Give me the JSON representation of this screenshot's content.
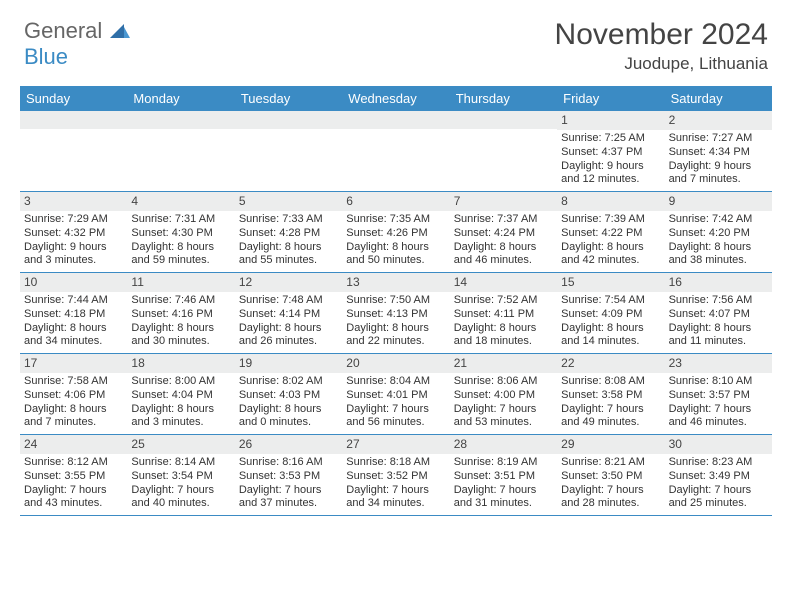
{
  "brand": {
    "part1": "General",
    "part2": "Blue"
  },
  "title": {
    "month": "November 2024",
    "location": "Juodupe, Lithuania"
  },
  "colors": {
    "header_bg": "#3b8bc4",
    "header_text": "#ffffff",
    "daynum_bg": "#eceded",
    "border": "#3b8bc4",
    "text": "#333333",
    "background": "#ffffff"
  },
  "weekdays": [
    "Sunday",
    "Monday",
    "Tuesday",
    "Wednesday",
    "Thursday",
    "Friday",
    "Saturday"
  ],
  "weeks": [
    [
      {
        "n": "",
        "sr": "",
        "ss": "",
        "d1": "",
        "d2": ""
      },
      {
        "n": "",
        "sr": "",
        "ss": "",
        "d1": "",
        "d2": ""
      },
      {
        "n": "",
        "sr": "",
        "ss": "",
        "d1": "",
        "d2": ""
      },
      {
        "n": "",
        "sr": "",
        "ss": "",
        "d1": "",
        "d2": ""
      },
      {
        "n": "",
        "sr": "",
        "ss": "",
        "d1": "",
        "d2": ""
      },
      {
        "n": "1",
        "sr": "Sunrise: 7:25 AM",
        "ss": "Sunset: 4:37 PM",
        "d1": "Daylight: 9 hours",
        "d2": "and 12 minutes."
      },
      {
        "n": "2",
        "sr": "Sunrise: 7:27 AM",
        "ss": "Sunset: 4:34 PM",
        "d1": "Daylight: 9 hours",
        "d2": "and 7 minutes."
      }
    ],
    [
      {
        "n": "3",
        "sr": "Sunrise: 7:29 AM",
        "ss": "Sunset: 4:32 PM",
        "d1": "Daylight: 9 hours",
        "d2": "and 3 minutes."
      },
      {
        "n": "4",
        "sr": "Sunrise: 7:31 AM",
        "ss": "Sunset: 4:30 PM",
        "d1": "Daylight: 8 hours",
        "d2": "and 59 minutes."
      },
      {
        "n": "5",
        "sr": "Sunrise: 7:33 AM",
        "ss": "Sunset: 4:28 PM",
        "d1": "Daylight: 8 hours",
        "d2": "and 55 minutes."
      },
      {
        "n": "6",
        "sr": "Sunrise: 7:35 AM",
        "ss": "Sunset: 4:26 PM",
        "d1": "Daylight: 8 hours",
        "d2": "and 50 minutes."
      },
      {
        "n": "7",
        "sr": "Sunrise: 7:37 AM",
        "ss": "Sunset: 4:24 PM",
        "d1": "Daylight: 8 hours",
        "d2": "and 46 minutes."
      },
      {
        "n": "8",
        "sr": "Sunrise: 7:39 AM",
        "ss": "Sunset: 4:22 PM",
        "d1": "Daylight: 8 hours",
        "d2": "and 42 minutes."
      },
      {
        "n": "9",
        "sr": "Sunrise: 7:42 AM",
        "ss": "Sunset: 4:20 PM",
        "d1": "Daylight: 8 hours",
        "d2": "and 38 minutes."
      }
    ],
    [
      {
        "n": "10",
        "sr": "Sunrise: 7:44 AM",
        "ss": "Sunset: 4:18 PM",
        "d1": "Daylight: 8 hours",
        "d2": "and 34 minutes."
      },
      {
        "n": "11",
        "sr": "Sunrise: 7:46 AM",
        "ss": "Sunset: 4:16 PM",
        "d1": "Daylight: 8 hours",
        "d2": "and 30 minutes."
      },
      {
        "n": "12",
        "sr": "Sunrise: 7:48 AM",
        "ss": "Sunset: 4:14 PM",
        "d1": "Daylight: 8 hours",
        "d2": "and 26 minutes."
      },
      {
        "n": "13",
        "sr": "Sunrise: 7:50 AM",
        "ss": "Sunset: 4:13 PM",
        "d1": "Daylight: 8 hours",
        "d2": "and 22 minutes."
      },
      {
        "n": "14",
        "sr": "Sunrise: 7:52 AM",
        "ss": "Sunset: 4:11 PM",
        "d1": "Daylight: 8 hours",
        "d2": "and 18 minutes."
      },
      {
        "n": "15",
        "sr": "Sunrise: 7:54 AM",
        "ss": "Sunset: 4:09 PM",
        "d1": "Daylight: 8 hours",
        "d2": "and 14 minutes."
      },
      {
        "n": "16",
        "sr": "Sunrise: 7:56 AM",
        "ss": "Sunset: 4:07 PM",
        "d1": "Daylight: 8 hours",
        "d2": "and 11 minutes."
      }
    ],
    [
      {
        "n": "17",
        "sr": "Sunrise: 7:58 AM",
        "ss": "Sunset: 4:06 PM",
        "d1": "Daylight: 8 hours",
        "d2": "and 7 minutes."
      },
      {
        "n": "18",
        "sr": "Sunrise: 8:00 AM",
        "ss": "Sunset: 4:04 PM",
        "d1": "Daylight: 8 hours",
        "d2": "and 3 minutes."
      },
      {
        "n": "19",
        "sr": "Sunrise: 8:02 AM",
        "ss": "Sunset: 4:03 PM",
        "d1": "Daylight: 8 hours",
        "d2": "and 0 minutes."
      },
      {
        "n": "20",
        "sr": "Sunrise: 8:04 AM",
        "ss": "Sunset: 4:01 PM",
        "d1": "Daylight: 7 hours",
        "d2": "and 56 minutes."
      },
      {
        "n": "21",
        "sr": "Sunrise: 8:06 AM",
        "ss": "Sunset: 4:00 PM",
        "d1": "Daylight: 7 hours",
        "d2": "and 53 minutes."
      },
      {
        "n": "22",
        "sr": "Sunrise: 8:08 AM",
        "ss": "Sunset: 3:58 PM",
        "d1": "Daylight: 7 hours",
        "d2": "and 49 minutes."
      },
      {
        "n": "23",
        "sr": "Sunrise: 8:10 AM",
        "ss": "Sunset: 3:57 PM",
        "d1": "Daylight: 7 hours",
        "d2": "and 46 minutes."
      }
    ],
    [
      {
        "n": "24",
        "sr": "Sunrise: 8:12 AM",
        "ss": "Sunset: 3:55 PM",
        "d1": "Daylight: 7 hours",
        "d2": "and 43 minutes."
      },
      {
        "n": "25",
        "sr": "Sunrise: 8:14 AM",
        "ss": "Sunset: 3:54 PM",
        "d1": "Daylight: 7 hours",
        "d2": "and 40 minutes."
      },
      {
        "n": "26",
        "sr": "Sunrise: 8:16 AM",
        "ss": "Sunset: 3:53 PM",
        "d1": "Daylight: 7 hours",
        "d2": "and 37 minutes."
      },
      {
        "n": "27",
        "sr": "Sunrise: 8:18 AM",
        "ss": "Sunset: 3:52 PM",
        "d1": "Daylight: 7 hours",
        "d2": "and 34 minutes."
      },
      {
        "n": "28",
        "sr": "Sunrise: 8:19 AM",
        "ss": "Sunset: 3:51 PM",
        "d1": "Daylight: 7 hours",
        "d2": "and 31 minutes."
      },
      {
        "n": "29",
        "sr": "Sunrise: 8:21 AM",
        "ss": "Sunset: 3:50 PM",
        "d1": "Daylight: 7 hours",
        "d2": "and 28 minutes."
      },
      {
        "n": "30",
        "sr": "Sunrise: 8:23 AM",
        "ss": "Sunset: 3:49 PM",
        "d1": "Daylight: 7 hours",
        "d2": "and 25 minutes."
      }
    ]
  ]
}
